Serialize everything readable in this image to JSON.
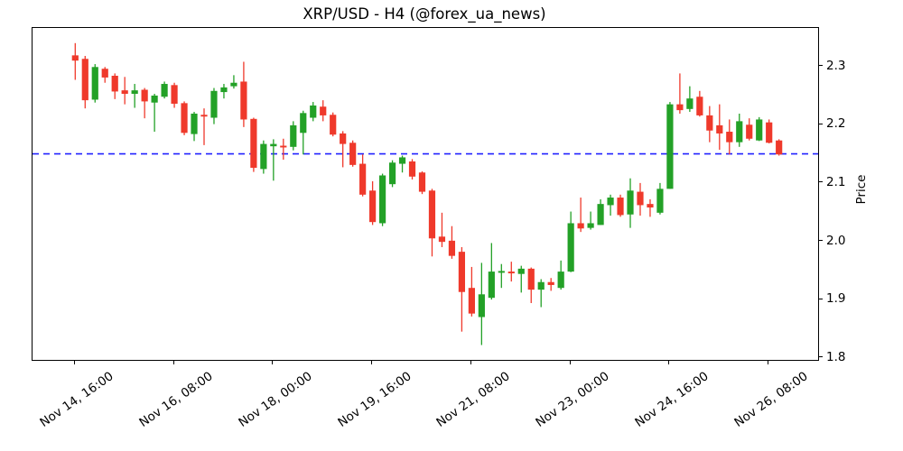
{
  "title": "XRP/USD - H4 (@forex_ua_news)",
  "colors": {
    "up": "#23a127",
    "down": "#ef392b",
    "hline": "#2222ff",
    "axis": "#000000",
    "background": "#ffffff"
  },
  "chart_data": {
    "type": "candlestick",
    "title": "XRP/USD - H4 (@forex_ua_news)",
    "ylabel": "Price",
    "ylim": [
      1.7965,
      2.366
    ],
    "ytick_values": [
      1.8,
      1.9,
      2.0,
      2.1,
      2.2,
      2.3
    ],
    "ytick_labels": [
      "1.8",
      "1.9",
      "2.0",
      "2.1",
      "2.2",
      "2.3"
    ],
    "xtick_indices": [
      0,
      10,
      20,
      30,
      40,
      50,
      60,
      70
    ],
    "xtick_labels": [
      "Nov 14, 16:00",
      "Nov 16, 08:00",
      "Nov 18, 00:00",
      "Nov 19, 16:00",
      "Nov 21, 08:00",
      "Nov 23, 00:00",
      "Nov 24, 16:00",
      "Nov 26, 08:00"
    ],
    "hline": {
      "value": 2.15,
      "style": "dashed",
      "color": "#2222ff"
    },
    "legend": "none",
    "grid": false,
    "candles_ohlc": [
      [
        2.319,
        2.34,
        2.277,
        2.31
      ],
      [
        2.313,
        2.318,
        2.228,
        2.242
      ],
      [
        2.243,
        2.304,
        2.238,
        2.299
      ],
      [
        2.296,
        2.299,
        2.272,
        2.281
      ],
      [
        2.284,
        2.288,
        2.244,
        2.257
      ],
      [
        2.259,
        2.282,
        2.235,
        2.253
      ],
      [
        2.253,
        2.27,
        2.229,
        2.259
      ],
      [
        2.26,
        2.263,
        2.211,
        2.24
      ],
      [
        2.238,
        2.253,
        2.188,
        2.25
      ],
      [
        2.248,
        2.274,
        2.245,
        2.27
      ],
      [
        2.268,
        2.272,
        2.229,
        2.236
      ],
      [
        2.237,
        2.24,
        2.182,
        2.186
      ],
      [
        2.184,
        2.222,
        2.172,
        2.219
      ],
      [
        2.217,
        2.228,
        2.165,
        2.214
      ],
      [
        2.212,
        2.263,
        2.201,
        2.258
      ],
      [
        2.256,
        2.27,
        2.245,
        2.264
      ],
      [
        2.266,
        2.285,
        2.262,
        2.272
      ],
      [
        2.274,
        2.308,
        2.196,
        2.209
      ],
      [
        2.21,
        2.212,
        2.119,
        2.126
      ],
      [
        2.124,
        2.173,
        2.116,
        2.167
      ],
      [
        2.163,
        2.175,
        2.104,
        2.167
      ],
      [
        2.164,
        2.176,
        2.14,
        2.161
      ],
      [
        2.162,
        2.206,
        2.156,
        2.199
      ],
      [
        2.186,
        2.224,
        2.149,
        2.22
      ],
      [
        2.212,
        2.239,
        2.206,
        2.233
      ],
      [
        2.231,
        2.242,
        2.206,
        2.216
      ],
      [
        2.217,
        2.221,
        2.18,
        2.183
      ],
      [
        2.185,
        2.189,
        2.127,
        2.167
      ],
      [
        2.169,
        2.173,
        2.128,
        2.131
      ],
      [
        2.133,
        2.149,
        2.077,
        2.08
      ],
      [
        2.087,
        2.103,
        2.028,
        2.033
      ],
      [
        2.031,
        2.116,
        2.026,
        2.113
      ],
      [
        2.098,
        2.139,
        2.093,
        2.135
      ],
      [
        2.133,
        2.147,
        2.118,
        2.144
      ],
      [
        2.137,
        2.141,
        2.106,
        2.111
      ],
      [
        2.118,
        2.12,
        2.081,
        2.085
      ],
      [
        2.087,
        2.09,
        1.974,
        2.005
      ],
      [
        2.008,
        2.049,
        1.99,
        1.999
      ],
      [
        2.001,
        2.026,
        1.97,
        1.975
      ],
      [
        1.982,
        1.99,
        1.845,
        1.913
      ],
      [
        1.92,
        1.956,
        1.871,
        1.876
      ],
      [
        1.87,
        1.963,
        1.822,
        1.909
      ],
      [
        1.903,
        1.997,
        1.9,
        1.948
      ],
      [
        1.946,
        1.961,
        1.92,
        1.949
      ],
      [
        1.948,
        1.965,
        1.931,
        1.945
      ],
      [
        1.944,
        1.958,
        1.912,
        1.953
      ],
      [
        1.953,
        1.955,
        1.894,
        1.917
      ],
      [
        1.917,
        1.935,
        1.887,
        1.93
      ],
      [
        1.93,
        1.937,
        1.915,
        1.925
      ],
      [
        1.92,
        1.967,
        1.917,
        1.948
      ],
      [
        1.948,
        2.051,
        1.947,
        2.031
      ],
      [
        2.031,
        2.075,
        2.016,
        2.022
      ],
      [
        2.023,
        2.051,
        2.02,
        2.031
      ],
      [
        2.028,
        2.072,
        2.028,
        2.064
      ],
      [
        2.062,
        2.08,
        2.044,
        2.075
      ],
      [
        2.075,
        2.08,
        2.042,
        2.045
      ],
      [
        2.046,
        2.108,
        2.023,
        2.087
      ],
      [
        2.085,
        2.1,
        2.044,
        2.062
      ],
      [
        2.064,
        2.072,
        2.042,
        2.058
      ],
      [
        2.049,
        2.1,
        2.046,
        2.09
      ],
      [
        2.09,
        2.239,
        2.09,
        2.235
      ],
      [
        2.235,
        2.288,
        2.219,
        2.225
      ],
      [
        2.227,
        2.266,
        2.222,
        2.245
      ],
      [
        2.248,
        2.258,
        2.214,
        2.216
      ],
      [
        2.216,
        2.232,
        2.17,
        2.19
      ],
      [
        2.199,
        2.235,
        2.157,
        2.185
      ],
      [
        2.188,
        2.209,
        2.149,
        2.17
      ],
      [
        2.17,
        2.219,
        2.162,
        2.206
      ],
      [
        2.2,
        2.211,
        2.173,
        2.176
      ],
      [
        2.173,
        2.213,
        2.172,
        2.209
      ],
      [
        2.204,
        2.209,
        2.168,
        2.169
      ],
      [
        2.173,
        2.175,
        2.147,
        2.149
      ]
    ]
  }
}
